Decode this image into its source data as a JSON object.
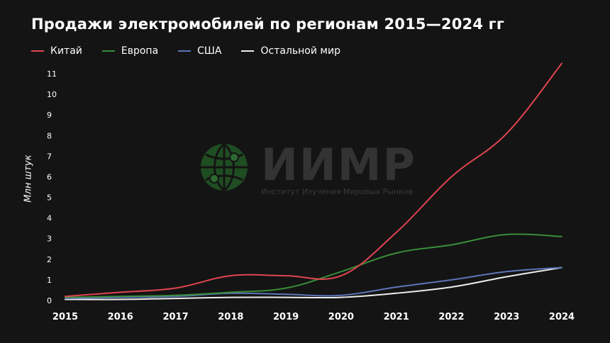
{
  "title": "Продажи электромобилей по регионам 2015—2024 гг",
  "watermark": {
    "name": "ИИМР",
    "subtitle": "Институт Изучения Мировых Рынков"
  },
  "colors": {
    "background": "#141414",
    "china": "#e0444f",
    "europe": "#3a8d3a",
    "usa": "#5b74b8",
    "rest": "#eeeeee",
    "watermark": "#333333",
    "watermark_logo": "#1f4d22"
  },
  "chart_data": {
    "type": "line",
    "title": "Продажи электромобилей по регионам 2015—2024 гг",
    "xlabel": "",
    "ylabel": "Млн штук",
    "x": [
      2015,
      2016,
      2017,
      2018,
      2019,
      2020,
      2021,
      2022,
      2023,
      2024
    ],
    "x_tick_labels": [
      "2015",
      "2016",
      "2017",
      "2018",
      "2019",
      "2020",
      "2021",
      "2022",
      "2023",
      "2024"
    ],
    "y_tick_labels": [
      "0",
      "1",
      "2",
      "3",
      "4",
      "5",
      "6",
      "7",
      "8",
      "9",
      "10",
      "11"
    ],
    "ylim": [
      0,
      11
    ],
    "xlim": [
      2015,
      2024
    ],
    "grid": false,
    "legend_position": "top-left",
    "series": [
      {
        "name": "Китай",
        "color": "#e0444f",
        "values": [
          0.2,
          0.4,
          0.6,
          1.2,
          1.2,
          1.2,
          3.3,
          6.0,
          8.1,
          11.5
        ]
      },
      {
        "name": "Европа",
        "color": "#3a8d3a",
        "values": [
          0.15,
          0.2,
          0.25,
          0.4,
          0.6,
          1.4,
          2.3,
          2.7,
          3.2,
          3.1
        ]
      },
      {
        "name": "США",
        "color": "#5b74b8",
        "values": [
          0.1,
          0.15,
          0.2,
          0.35,
          0.3,
          0.25,
          0.65,
          1.0,
          1.4,
          1.6
        ]
      },
      {
        "name": "Остальной мир",
        "color": "#eeeeee",
        "values": [
          0.05,
          0.05,
          0.1,
          0.15,
          0.15,
          0.15,
          0.35,
          0.65,
          1.15,
          1.6
        ]
      }
    ]
  }
}
